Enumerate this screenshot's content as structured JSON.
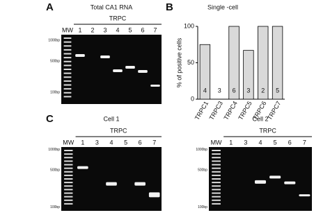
{
  "panel_a": {
    "letter": "A",
    "title": "Total CA1 RNA",
    "group_label": "TRPC",
    "lanes": [
      "MW",
      "1",
      "2",
      "3",
      "4",
      "5",
      "6",
      "7"
    ],
    "markers": [
      "1000bp",
      "500bp",
      "100bp"
    ]
  },
  "chart_data": {
    "type": "bar",
    "letter": "B",
    "title": "Single -cell",
    "y_label": "% of positive cells",
    "categories": [
      "TRPC1",
      "TRPC3",
      "TRPC4",
      "TRPC5",
      "TRPC6",
      "TRPC7"
    ],
    "values": [
      75,
      0,
      100,
      67,
      100,
      100
    ],
    "bar_labels": [
      "4",
      "3",
      "6",
      "3",
      "2",
      "5"
    ],
    "color": "#d9d9d9",
    "ylim": [
      0,
      100
    ],
    "yticks": [
      0,
      50,
      100
    ]
  },
  "panel_c": {
    "letter": "C",
    "gels": [
      {
        "title": "Cell  1",
        "group_label": "TRPC",
        "lanes": [
          "MW",
          "1",
          "3",
          "4",
          "5",
          "6",
          "7"
        ],
        "markers": [
          "1000bp",
          "500bp",
          "100bp"
        ]
      },
      {
        "title": "Cell  2",
        "group_label": "TRPC",
        "lanes": [
          "MW",
          "1",
          "3",
          "4",
          "5",
          "6",
          "7"
        ],
        "markers": [
          "1000bp",
          "500bp",
          "100bp"
        ]
      }
    ]
  }
}
